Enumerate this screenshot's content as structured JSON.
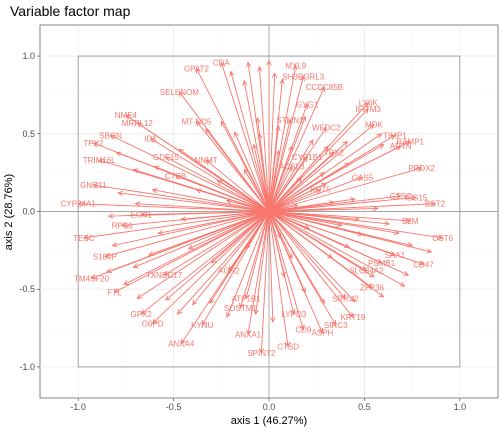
{
  "chart_data": {
    "type": "scatter",
    "title": "Variable factor map",
    "xlabel": "axis 1 (46.27%)",
    "ylabel": "axis 2 (28.76%)",
    "xlim": [
      -1.2,
      1.2
    ],
    "ylim": [
      -1.2,
      1.2
    ],
    "x_ticks": [
      "-1.0",
      "-0.5",
      "0.0",
      "0.5",
      "1.0"
    ],
    "y_ticks": [
      "-1.0",
      "-0.5",
      "0.0",
      "0.5",
      "1.0"
    ],
    "grid": true,
    "unit_box": [
      -1,
      1
    ],
    "arrow_color": "#F8766D",
    "variables": [
      {
        "label": "MYL9",
        "x": 0.14,
        "y": 0.94
      },
      {
        "label": "SH3BGRL3",
        "x": 0.18,
        "y": 0.87
      },
      {
        "label": "CCDC85B",
        "x": 0.29,
        "y": 0.8
      },
      {
        "label": "GYG1",
        "x": 0.2,
        "y": 0.69
      },
      {
        "label": "LY6K",
        "x": 0.52,
        "y": 0.7
      },
      {
        "label": "IFITM3",
        "x": 0.52,
        "y": 0.66
      },
      {
        "label": "WFDC2",
        "x": 0.3,
        "y": 0.54
      },
      {
        "label": "MDK",
        "x": 0.55,
        "y": 0.56
      },
      {
        "label": "TIMP1",
        "x": 0.66,
        "y": 0.49
      },
      {
        "label": "RAMP1",
        "x": 0.74,
        "y": 0.45
      },
      {
        "label": "ARTN",
        "x": 0.69,
        "y": 0.42
      },
      {
        "label": "TPX2",
        "x": 0.34,
        "y": 0.38
      },
      {
        "label": "CYP1B1",
        "x": 0.2,
        "y": 0.35
      },
      {
        "label": "PRDX2",
        "x": 0.8,
        "y": 0.28
      },
      {
        "label": "GAS5",
        "x": 0.49,
        "y": 0.22
      },
      {
        "label": "GTSC",
        "x": 0.69,
        "y": 0.1
      },
      {
        "label": "ISG15",
        "x": 0.77,
        "y": 0.09
      },
      {
        "label": "BST2",
        "x": 0.87,
        "y": 0.05
      },
      {
        "label": "B2M",
        "x": 0.74,
        "y": -0.06
      },
      {
        "label": "OST6",
        "x": 0.91,
        "y": -0.17
      },
      {
        "label": "CD47",
        "x": 0.81,
        "y": -0.34
      },
      {
        "label": "SAA1",
        "x": 0.66,
        "y": -0.28
      },
      {
        "label": "PSMB1",
        "x": 0.59,
        "y": -0.33
      },
      {
        "label": "ZFP36",
        "x": 0.54,
        "y": -0.49
      },
      {
        "label": "KRT19",
        "x": 0.44,
        "y": -0.68
      },
      {
        "label": "SIRC3",
        "x": 0.35,
        "y": -0.73
      },
      {
        "label": "ASPH",
        "x": 0.28,
        "y": -0.78
      },
      {
        "label": "CD9",
        "x": 0.18,
        "y": -0.76
      },
      {
        "label": "CTSD",
        "x": 0.1,
        "y": -0.87
      },
      {
        "label": "SPINT2",
        "x": -0.04,
        "y": -0.91
      },
      {
        "label": "ANXA1",
        "x": -0.11,
        "y": -0.79
      },
      {
        "label": "ANXA4",
        "x": -0.46,
        "y": -0.85
      },
      {
        "label": "KYNU",
        "x": -0.35,
        "y": -0.73
      },
      {
        "label": "G6PD",
        "x": -0.61,
        "y": -0.72
      },
      {
        "label": "GPX2",
        "x": -0.67,
        "y": -0.66
      },
      {
        "label": "FTL",
        "x": -0.81,
        "y": -0.52
      },
      {
        "label": "TM4SF20",
        "x": -0.93,
        "y": -0.43
      },
      {
        "label": "S100P",
        "x": -0.86,
        "y": -0.29
      },
      {
        "label": "TESC",
        "x": -0.97,
        "y": -0.17
      },
      {
        "label": "RPS6",
        "x": -0.77,
        "y": -0.09
      },
      {
        "label": "ECH1",
        "x": -0.67,
        "y": -0.02
      },
      {
        "label": "CYP24A1",
        "x": -1.0,
        "y": 0.05
      },
      {
        "label": "GNG11",
        "x": -0.92,
        "y": 0.17
      },
      {
        "label": "TRIM16L",
        "x": -0.89,
        "y": 0.33
      },
      {
        "label": "TPX2",
        "x": -0.92,
        "y": 0.44
      },
      {
        "label": "SBGN",
        "x": -0.83,
        "y": 0.49
      },
      {
        "label": "NME4",
        "x": -0.75,
        "y": 0.62
      },
      {
        "label": "MRPL12",
        "x": -0.69,
        "y": 0.57
      },
      {
        "label": "ID1",
        "x": -0.62,
        "y": 0.47
      },
      {
        "label": "GDF15",
        "x": -0.54,
        "y": 0.35
      },
      {
        "label": "CTSB",
        "x": -0.49,
        "y": 0.23
      },
      {
        "label": "SELENOM",
        "x": -0.47,
        "y": 0.77
      },
      {
        "label": "MT-ND5",
        "x": -0.38,
        "y": 0.58
      },
      {
        "label": "NNMT",
        "x": -0.33,
        "y": 0.33
      },
      {
        "label": "GPAT2",
        "x": -0.38,
        "y": 0.92
      },
      {
        "label": "CDA",
        "x": -0.25,
        "y": 0.96
      },
      {
        "label": "STMN1",
        "x": 0.11,
        "y": 0.59
      },
      {
        "label": "ACSL3",
        "x": 0.12,
        "y": 0.29
      },
      {
        "label": "KRT5",
        "x": 0.27,
        "y": 0.14
      },
      {
        "label": "ATP1B1",
        "x": -0.12,
        "y": -0.56
      },
      {
        "label": "SOSTM1",
        "x": -0.15,
        "y": -0.62
      },
      {
        "label": "LYPD3",
        "x": 0.13,
        "y": -0.66
      },
      {
        "label": "SRRX2",
        "x": 0.4,
        "y": -0.56
      },
      {
        "label": "SLC34A2",
        "x": 0.51,
        "y": -0.38
      },
      {
        "label": "AGR2",
        "x": -0.21,
        "y": -0.38
      },
      {
        "label": "TXNDC17",
        "x": -0.55,
        "y": -0.41
      }
    ],
    "extra_arrow_tips": [
      [
        -0.11,
        0.96
      ],
      [
        0.0,
        0.97
      ],
      [
        -0.05,
        0.93
      ],
      [
        0.03,
        0.89
      ],
      [
        0.07,
        0.85
      ],
      [
        -0.2,
        0.9
      ],
      [
        -0.13,
        0.84
      ],
      [
        -0.06,
        0.6
      ],
      [
        -0.25,
        0.58
      ],
      [
        -0.33,
        0.53
      ],
      [
        -0.18,
        0.51
      ],
      [
        -0.05,
        0.5
      ],
      [
        0.05,
        0.55
      ],
      [
        0.19,
        0.61
      ],
      [
        0.23,
        0.46
      ],
      [
        0.12,
        0.42
      ],
      [
        0.05,
        0.39
      ],
      [
        0.31,
        0.42
      ],
      [
        0.41,
        0.45
      ],
      [
        0.59,
        0.5
      ],
      [
        0.6,
        0.43
      ],
      [
        0.42,
        0.31
      ],
      [
        0.29,
        0.25
      ],
      [
        0.17,
        0.22
      ],
      [
        0.3,
        0.18
      ],
      [
        0.34,
        0.06
      ],
      [
        0.45,
        0.08
      ],
      [
        0.57,
        0.02
      ],
      [
        0.47,
        -0.05
      ],
      [
        0.63,
        -0.08
      ],
      [
        0.68,
        -0.14
      ],
      [
        0.75,
        -0.22
      ],
      [
        0.85,
        -0.26
      ],
      [
        0.49,
        -0.15
      ],
      [
        0.42,
        -0.23
      ],
      [
        0.33,
        -0.3
      ],
      [
        0.55,
        -0.42
      ],
      [
        0.71,
        -0.48
      ],
      [
        0.73,
        -0.41
      ],
      [
        0.6,
        -0.55
      ],
      [
        0.45,
        -0.58
      ],
      [
        0.29,
        -0.59
      ],
      [
        0.19,
        -0.52
      ],
      [
        0.08,
        -0.42
      ],
      [
        0.02,
        -0.71
      ],
      [
        -0.07,
        -0.66
      ],
      [
        -0.22,
        -0.68
      ],
      [
        -0.31,
        -0.59
      ],
      [
        -0.4,
        -0.6
      ],
      [
        -0.48,
        -0.66
      ],
      [
        -0.54,
        -0.57
      ],
      [
        -0.69,
        -0.56
      ],
      [
        -0.76,
        -0.47
      ],
      [
        -0.85,
        -0.39
      ],
      [
        -0.71,
        -0.36
      ],
      [
        -0.63,
        -0.28
      ],
      [
        -0.82,
        -0.22
      ],
      [
        -0.58,
        -0.14
      ],
      [
        -0.46,
        -0.05
      ],
      [
        -0.84,
        -0.03
      ],
      [
        -0.7,
        0.05
      ],
      [
        -0.79,
        0.12
      ],
      [
        -0.61,
        0.14
      ],
      [
        -0.71,
        0.27
      ],
      [
        -0.6,
        0.29
      ],
      [
        -0.8,
        0.38
      ],
      [
        -0.47,
        0.4
      ],
      [
        -0.38,
        0.14
      ],
      [
        -0.27,
        0.2
      ],
      [
        -0.22,
        0.07
      ],
      [
        -0.13,
        0.27
      ],
      [
        -0.08,
        0.43
      ],
      [
        -0.42,
        -0.24
      ],
      [
        -0.3,
        -0.33
      ],
      [
        -0.12,
        -0.24
      ],
      [
        0.06,
        -0.17
      ],
      [
        0.12,
        -0.3
      ],
      [
        0.21,
        -0.11
      ],
      [
        0.38,
        -0.09
      ],
      [
        0.15,
        0.04
      ]
    ]
  }
}
